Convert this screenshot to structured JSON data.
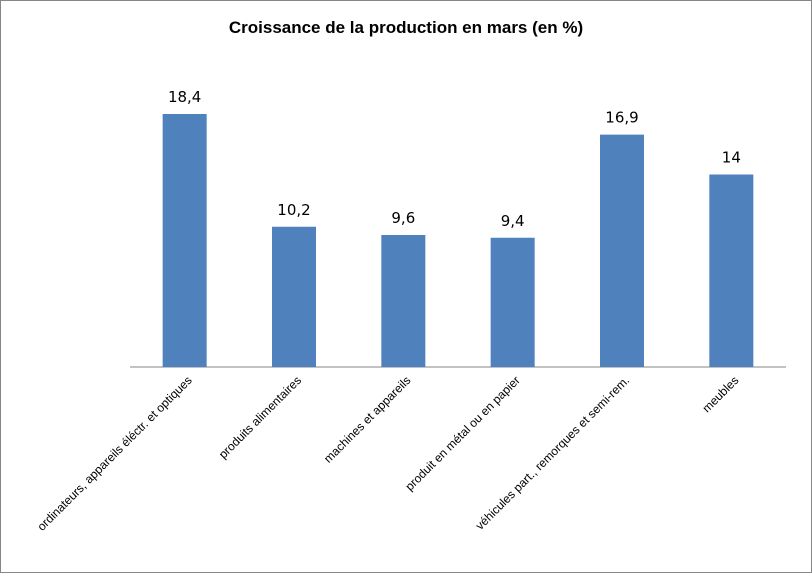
{
  "chart_data": {
    "type": "bar",
    "title": "Croissance de la production en mars (en %)",
    "xlabel": "",
    "ylabel": "",
    "categories": [
      "ordinateurs, appareils éléctr. et optiques",
      "produits alimentaires",
      "machines et appareils",
      "produit en métal ou en papier",
      "véhicules part., remorques et semi-rem.",
      "meubles"
    ],
    "values": [
      18.4,
      10.2,
      9.6,
      9.4,
      16.9,
      14
    ],
    "data_labels": [
      "18,4",
      "10,2",
      "9,6",
      "9,4",
      "16,9",
      "14"
    ],
    "ylim": [
      0,
      20
    ],
    "grid": false,
    "legend": "none",
    "bar_color": "#4F81BD"
  }
}
